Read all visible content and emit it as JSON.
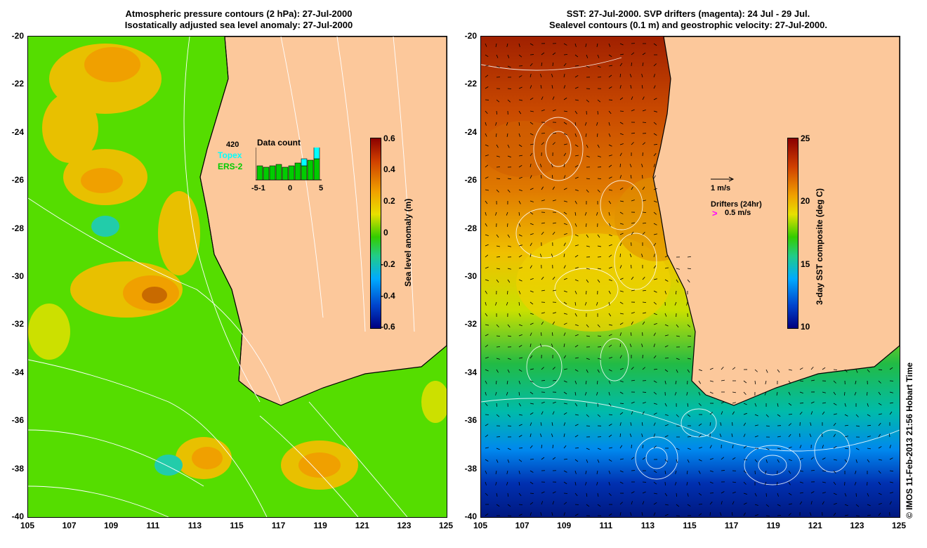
{
  "left_panel": {
    "title_line1": "Atmospheric pressure contours (2 hPa): 27-Jul-2000",
    "title_line2": "Isostatically adjusted sea level anomaly: 27-Jul-2000",
    "colorbar_label": "Sea level anomaly (m)",
    "colorbar_ticks": [
      "0.6",
      "0.4",
      "0.2",
      "0",
      "-0.2",
      "-0.4",
      "-0.6"
    ],
    "inset": {
      "count": "420",
      "topex_label": "Topex",
      "ers_label": "ERS-2",
      "title": "Data count",
      "xticks": [
        "-5",
        "-1",
        "0",
        "5"
      ],
      "topex_color": "#00ffff",
      "ers_color": "#00cc00"
    }
  },
  "right_panel": {
    "title_line1": "SST: 27-Jul-2000. SVP drifters (magenta): 24 Jul - 29 Jul.",
    "title_line2": "Sealevel contours (0.1 m) and geostrophic velocity: 27-Jul-2000.",
    "colorbar_label": "3-day SST composite (deg C)",
    "colorbar_ticks": [
      "25",
      "20",
      "15",
      "10"
    ],
    "velocity_legend": "1 m/s",
    "drifters_title": "Drifters (24hr)",
    "drifters_speed": "0.5 m/s",
    "drifter_color": "#ff00ff"
  },
  "axes": {
    "y_ticks": [
      "-20",
      "-22",
      "-24",
      "-26",
      "-28",
      "-30",
      "-32",
      "-34",
      "-36",
      "-38",
      "-40"
    ],
    "x_ticks": [
      "105",
      "107",
      "109",
      "111",
      "113",
      "115",
      "117",
      "119",
      "121",
      "123",
      "125"
    ]
  },
  "credit": "© IMOS 11-Feb-2013 21:56 Hobart Time",
  "colors": {
    "land": "#fcc89b",
    "ocean_green": "#33cc00",
    "ocean_warm": "#f0a000"
  }
}
